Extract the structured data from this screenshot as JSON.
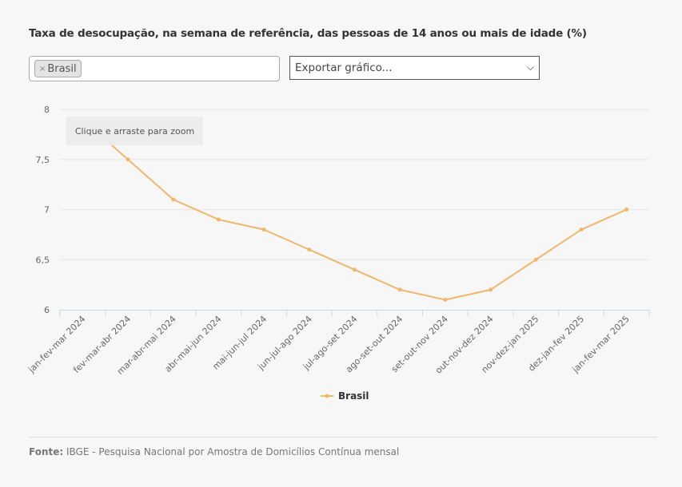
{
  "title": "Taxa de desocupação, na semana de referência, das pessoas de 14 anos ou mais de idade (%)",
  "filter": {
    "remove_icon": "×",
    "tag": "Brasil"
  },
  "export": {
    "label": "Exportar gráfico...",
    "chevron": "⌄"
  },
  "zoom_hint": "Clique e arraste para zoom",
  "source": {
    "label": "Fonte:",
    "text": "IBGE - Pesquisa Nacional por Amostra de Domicílios Contínua mensal"
  },
  "chart_data": {
    "type": "line",
    "title": "Taxa de desocupação, na semana de referência, das pessoas de 14 anos ou mais de idade (%)",
    "categories": [
      "jan-fev-mar 2024",
      "fev-mar-abr 2024",
      "mar-abr-mai 2024",
      "abr-mai-jun 2024",
      "mai-jun-jul 2024",
      "jun-jul-ago 2024",
      "jul-ago-set 2024",
      "ago-set-out 2024",
      "set-out-nov 2024",
      "out-nov-dez 2024",
      "nov-dez-jan 2025",
      "dez-jan-fev 2025",
      "jan-fev-mar 2025"
    ],
    "series": [
      {
        "name": "Brasil",
        "color": "#f0b66c",
        "values": [
          7.9,
          7.5,
          7.1,
          6.9,
          6.8,
          6.6,
          6.4,
          6.2,
          6.1,
          6.2,
          6.5,
          6.8,
          7.0
        ]
      }
    ],
    "yticks": [
      "6",
      "6,5",
      "7",
      "7,5",
      "8"
    ],
    "ylim": [
      6,
      8
    ],
    "grid": true,
    "legend": "bottom-center"
  }
}
